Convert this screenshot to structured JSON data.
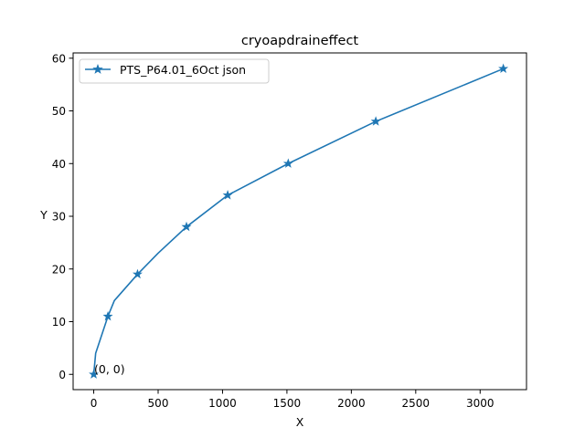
{
  "chart_data": {
    "type": "line",
    "title": "cryoapdraineffect",
    "xlabel": "X",
    "ylabel": "Y",
    "xlim": [
      -160,
      3360
    ],
    "ylim": [
      -2.9,
      61
    ],
    "xticks": [
      0,
      500,
      1000,
      1500,
      2000,
      2500,
      3000
    ],
    "yticks": [
      0,
      10,
      20,
      30,
      40,
      50,
      60
    ],
    "grid": false,
    "legend_position": "top-left",
    "series": [
      {
        "name": "PTS_P64.01_6Oct json",
        "color": "#1f77b4",
        "marker": "star",
        "x": [
          0,
          15,
          110,
          160,
          340,
          500,
          720,
          1040,
          1510,
          2190,
          3180
        ],
        "y": [
          0,
          4,
          11,
          14,
          19,
          23,
          28,
          34,
          40,
          48,
          58
        ],
        "marked": [
          true,
          false,
          true,
          false,
          true,
          false,
          true,
          true,
          true,
          true,
          true
        ]
      }
    ],
    "annotations": [
      {
        "text": "(0, 0)",
        "x": 0,
        "y": 0
      }
    ]
  }
}
